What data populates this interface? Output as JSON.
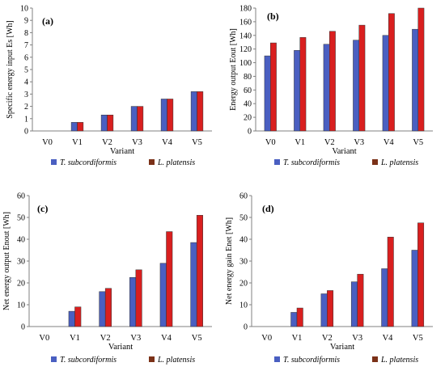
{
  "figure": {
    "colors": {
      "series1": "#4a5fc1",
      "series2": "#d91f1f",
      "series2_legend": "#7b3118",
      "axis": "#808080",
      "text": "#000000"
    }
  },
  "chart_data": [
    {
      "id": "a",
      "type": "bar",
      "panel_label": "(a)",
      "title": "",
      "xlabel": "Variant",
      "ylabel": "Specific energy input Es [Wh]",
      "categories": [
        "V0",
        "V1",
        "V2",
        "V3",
        "V4",
        "V5"
      ],
      "ylim": [
        0,
        10
      ],
      "yticks": [
        0,
        1,
        2,
        3,
        4,
        5,
        6,
        7,
        8,
        9,
        10
      ],
      "yticks_text": [
        "0",
        "1",
        "2",
        "3",
        "4",
        "5",
        "6",
        "7",
        "8",
        "9",
        "10"
      ],
      "grid": false,
      "legend_position": "bottom",
      "series": [
        {
          "name": "T. subcordiformis",
          "values": [
            0,
            0.7,
            1.3,
            2.0,
            2.6,
            3.2
          ]
        },
        {
          "name": "L. platensis",
          "values": [
            0,
            0.7,
            1.3,
            2.0,
            2.6,
            3.2
          ]
        }
      ]
    },
    {
      "id": "b",
      "type": "bar",
      "panel_label": "(b)",
      "title": "",
      "xlabel": "Variant",
      "ylabel": "Energy output Eout [Wh]",
      "categories": [
        "V0",
        "V1",
        "V2",
        "V3",
        "V4",
        "V5"
      ],
      "ylim": [
        0,
        180
      ],
      "yticks": [
        0,
        20,
        40,
        60,
        80,
        100,
        120,
        140,
        160,
        180
      ],
      "yticks_text": [
        "0",
        "20",
        "40",
        "60",
        "80",
        "100",
        "120",
        "140",
        "160",
        "180"
      ],
      "grid": false,
      "legend_position": "bottom",
      "series": [
        {
          "name": "T. subcordiformis",
          "values": [
            110,
            118,
            127,
            133,
            140,
            149
          ]
        },
        {
          "name": "L. platensis",
          "values": [
            129,
            137,
            146,
            155,
            172,
            180
          ]
        }
      ]
    },
    {
      "id": "c",
      "type": "bar",
      "panel_label": "(c)",
      "title": "",
      "xlabel": "Variant",
      "ylabel": "Net energy output Enout [Wh]",
      "categories": [
        "V0",
        "V1",
        "V2",
        "V3",
        "V4",
        "V5"
      ],
      "ylim": [
        0,
        60
      ],
      "yticks": [
        0,
        10,
        20,
        30,
        40,
        50,
        60
      ],
      "yticks_text": [
        "0",
        "10",
        "20",
        "30",
        "40",
        "50",
        "60"
      ],
      "grid": false,
      "legend_position": "bottom",
      "series": [
        {
          "name": "T. subcordiformis",
          "values": [
            0,
            7,
            16,
            22.5,
            29,
            38.5
          ]
        },
        {
          "name": "L. platensis",
          "values": [
            0,
            9,
            17.5,
            26,
            43.5,
            51
          ]
        }
      ]
    },
    {
      "id": "d",
      "type": "bar",
      "panel_label": "(d)",
      "title": "",
      "xlabel": "Variant",
      "ylabel": "Net energy gain Enet [Wh]",
      "categories": [
        "V0",
        "V1",
        "V2",
        "V3",
        "V4",
        "V5"
      ],
      "ylim": [
        0,
        60
      ],
      "yticks": [
        0,
        10,
        20,
        30,
        40,
        50,
        60
      ],
      "yticks_text": [
        "0",
        "10",
        "20",
        "30",
        "40",
        "50",
        "60"
      ],
      "grid": false,
      "legend_position": "bottom",
      "series": [
        {
          "name": "T. subcordiformis",
          "values": [
            0,
            6.5,
            15,
            20.5,
            26.5,
            35
          ]
        },
        {
          "name": "L. platensis",
          "values": [
            0,
            8.5,
            16.5,
            24,
            41,
            47.5
          ]
        }
      ]
    }
  ]
}
